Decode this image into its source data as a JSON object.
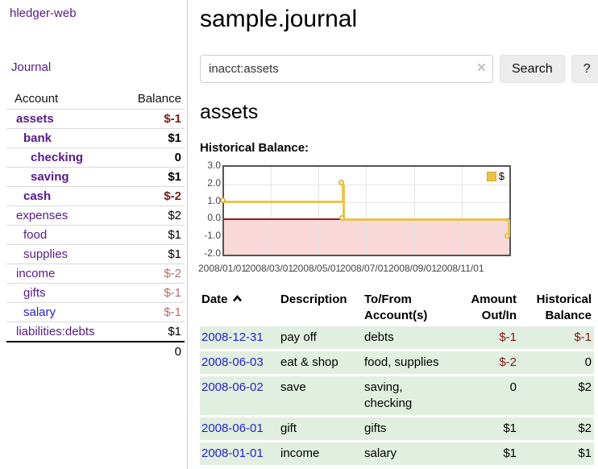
{
  "sidebar": {
    "app_title": "hledger-web",
    "nav": {
      "journal_label": "Journal"
    },
    "accounts_table": {
      "headers": {
        "account": "Account",
        "balance": "Balance"
      },
      "rows": [
        {
          "name": "assets",
          "balance": "$-1",
          "level": 0,
          "bold": true,
          "balance_style": "negative",
          "link_style": "purple"
        },
        {
          "name": "bank",
          "balance": "$1",
          "level": 1,
          "bold": true,
          "balance_style": "normal",
          "link_style": "purple"
        },
        {
          "name": "checking",
          "balance": "0",
          "level": 2,
          "bold": true,
          "balance_style": "normal",
          "link_style": "purple"
        },
        {
          "name": "saving",
          "balance": "$1",
          "level": 2,
          "bold": true,
          "balance_style": "normal",
          "link_style": "purple"
        },
        {
          "name": "cash",
          "balance": "$-2",
          "level": 1,
          "bold": true,
          "balance_style": "negative",
          "link_style": "purple"
        },
        {
          "name": "expenses",
          "balance": "$2",
          "level": 0,
          "bold": false,
          "balance_style": "normal",
          "link_style": "purple"
        },
        {
          "name": "food",
          "balance": "$1",
          "level": 1,
          "bold": false,
          "balance_style": "normal",
          "link_style": "purple"
        },
        {
          "name": "supplies",
          "balance": "$1",
          "level": 1,
          "bold": false,
          "balance_style": "normal",
          "link_style": "purple"
        },
        {
          "name": "income",
          "balance": "$-2",
          "level": 0,
          "bold": false,
          "balance_style": "negative-light",
          "link_style": "purple"
        },
        {
          "name": "gifts",
          "balance": "$-1",
          "level": 1,
          "bold": false,
          "balance_style": "negative-light",
          "link_style": "purple"
        },
        {
          "name": "salary",
          "balance": "$-1",
          "level": 1,
          "bold": false,
          "balance_style": "negative-light",
          "link_style": "blue"
        },
        {
          "name": "liabilities:debts",
          "balance": "$1",
          "level": 0,
          "bold": false,
          "balance_style": "normal",
          "link_style": "purple"
        }
      ],
      "total": "0"
    }
  },
  "main": {
    "title": "sample.journal",
    "search": {
      "value": "inacct:assets",
      "clear_icon": "×",
      "search_button": "Search",
      "help_button": "?"
    },
    "account_heading": "assets",
    "chart_label": "Historical Balance:"
  },
  "chart_data": {
    "type": "line",
    "title": "Historical Balance",
    "step": true,
    "series": [
      {
        "name": "$",
        "color": "#e8c44c",
        "points": [
          [
            "2008-01-01",
            1
          ],
          [
            "2008-06-01",
            2
          ],
          [
            "2008-06-03",
            0
          ],
          [
            "2008-12-31",
            -1
          ]
        ]
      }
    ],
    "xlim": [
      "2008-01-01",
      "2009-01-01"
    ],
    "ylim": [
      -2,
      3
    ],
    "x_ticks": [
      {
        "date": "2008-01-01",
        "label": "2008/01/01"
      },
      {
        "date": "2008-03-01",
        "label": "2008/03/01"
      },
      {
        "date": "2008-05-01",
        "label": "2008/05/01"
      },
      {
        "date": "2008-07-01",
        "label": "2008/07/01"
      },
      {
        "date": "2008-09-01",
        "label": "2008/09/01"
      },
      {
        "date": "2008-11-01",
        "label": "2008/11/01"
      }
    ],
    "y_ticks": [
      {
        "value": 3,
        "label": "3.0"
      },
      {
        "value": 2,
        "label": "2.0"
      },
      {
        "value": 1,
        "label": "1.0"
      },
      {
        "value": 0,
        "label": "0.0"
      },
      {
        "value": -1,
        "label": "-1.0"
      },
      {
        "value": -2,
        "label": "-2.0"
      }
    ],
    "grid": true,
    "legend": {
      "label": "$",
      "position": "top-right"
    },
    "negative_region_fill": "#f8d8d8",
    "zero_line_color": "#8c1d1d"
  },
  "register": {
    "headers": {
      "date": "Date",
      "sort_icon": "chevron-up-icon",
      "description": "Description",
      "tofrom_line1": "To/From",
      "tofrom_line2": "Account(s)",
      "amount_line1": "Amount",
      "amount_line2": "Out/In",
      "balance_line1": "Historical",
      "balance_line2": "Balance"
    },
    "rows": [
      {
        "date": "2008-12-31",
        "description": "pay off",
        "accounts": "debts",
        "amount": "$-1",
        "amount_negative": true,
        "balance": "$-1",
        "balance_negative": true
      },
      {
        "date": "2008-06-03",
        "description": "eat & shop",
        "accounts": "food, supplies",
        "amount": "$-2",
        "amount_negative": true,
        "balance": "0",
        "balance_negative": false
      },
      {
        "date": "2008-06-02",
        "description": "save",
        "accounts": "saving, checking",
        "amount": "0",
        "amount_negative": false,
        "balance": "$2",
        "balance_negative": false
      },
      {
        "date": "2008-06-01",
        "description": "gift",
        "accounts": "gifts",
        "amount": "$1",
        "amount_negative": false,
        "balance": "$2",
        "balance_negative": false
      },
      {
        "date": "2008-01-01",
        "description": "income",
        "accounts": "salary",
        "amount": "$1",
        "amount_negative": false,
        "balance": "$1",
        "balance_negative": false
      }
    ]
  },
  "colors": {
    "accent_purple": "#551a8b",
    "link_blue": "#2222cc",
    "negative_dark": "#7e1717",
    "negative_light": "#bb6868",
    "row_green": "#e1efe0",
    "chart_line_yellow": "#e8c44c",
    "chart_negative_fill": "#f8d8d8",
    "chart_zero_line": "#8c1d1d",
    "button_gray": "#ececec"
  }
}
